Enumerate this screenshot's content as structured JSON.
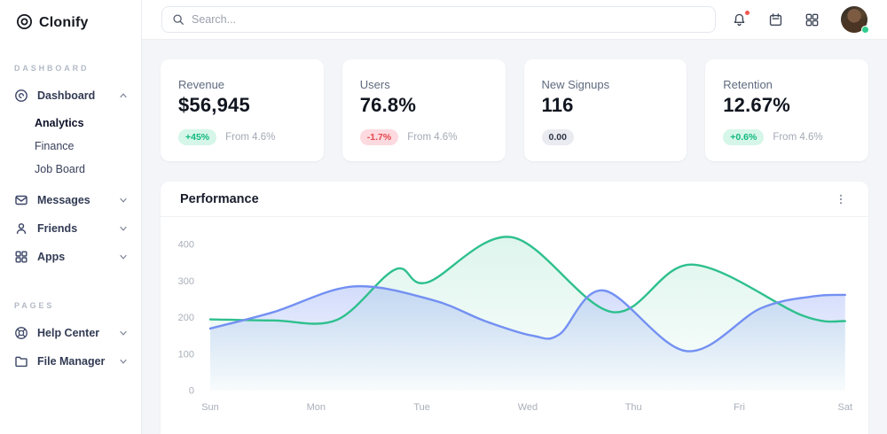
{
  "app": {
    "name": "Clonify"
  },
  "topbar": {
    "search_placeholder": "Search...",
    "icons": [
      "search-icon",
      "bell-icon",
      "calendar-icon",
      "apps-grid-icon",
      "avatar"
    ],
    "notification_dot_color": "#f0564f",
    "presence_dot_color": "#2ecc8d"
  },
  "sidebar": {
    "sections": [
      {
        "label": "DASHBOARD",
        "items": [
          {
            "label": "Dashboard",
            "icon": "dashboard-icon",
            "expanded": true,
            "children": [
              {
                "label": "Analytics",
                "active": true
              },
              {
                "label": "Finance",
                "active": false
              },
              {
                "label": "Job Board",
                "active": false
              }
            ]
          },
          {
            "label": "Messages",
            "icon": "mail-icon",
            "expanded": false
          },
          {
            "label": "Friends",
            "icon": "user-icon",
            "expanded": false
          },
          {
            "label": "Apps",
            "icon": "grid-icon",
            "expanded": false
          }
        ]
      },
      {
        "label": "PAGES",
        "items": [
          {
            "label": "Help Center",
            "icon": "lifebuoy-icon",
            "expanded": false
          },
          {
            "label": "File Manager",
            "icon": "folder-icon",
            "expanded": false
          }
        ]
      }
    ]
  },
  "stats": [
    {
      "label": "Revenue",
      "value": "$56,945",
      "badge": "+45%",
      "badge_type": "up",
      "note": "From 4.6%"
    },
    {
      "label": "Users",
      "value": "76.8%",
      "badge": "-1.7%",
      "badge_type": "down",
      "note": "From 4.6%"
    },
    {
      "label": "New Signups",
      "value": "116",
      "badge": "0.00",
      "badge_type": "neutral",
      "note": ""
    },
    {
      "label": "Retention",
      "value": "12.67%",
      "badge": "+0.6%",
      "badge_type": "up",
      "note": "From 4.6%"
    }
  ],
  "performance": {
    "title": "Performance"
  },
  "chart_data": {
    "type": "area",
    "title": "Performance",
    "x_categories": [
      "Sun",
      "Mon",
      "Tue",
      "Wed",
      "Thu",
      "Fri",
      "Sat"
    ],
    "y_ticks": [
      0,
      100,
      200,
      300,
      400
    ],
    "ylim": [
      0,
      440
    ],
    "grid": false,
    "legend": "none",
    "axis_text_color": "#a9afba",
    "series": [
      {
        "name": "green",
        "color": "#2ec08d",
        "fill_opacity_top": 0.16,
        "points": [
          [
            0,
            195
          ],
          [
            0.6,
            192
          ],
          [
            1.2,
            194
          ],
          [
            1.75,
            332
          ],
          [
            2.05,
            296
          ],
          [
            2.85,
            420
          ],
          [
            3.8,
            215
          ],
          [
            4.55,
            345
          ],
          [
            5.6,
            205
          ],
          [
            6,
            190
          ]
        ]
      },
      {
        "name": "blue",
        "color": "#7390f2",
        "fill_opacity_top": 0.32,
        "points": [
          [
            0,
            170
          ],
          [
            0.6,
            215
          ],
          [
            1.35,
            285
          ],
          [
            2.1,
            248
          ],
          [
            2.6,
            190
          ],
          [
            3.05,
            150
          ],
          [
            3.3,
            154
          ],
          [
            3.72,
            274
          ],
          [
            4.5,
            108
          ],
          [
            5.2,
            225
          ],
          [
            5.7,
            258
          ],
          [
            6,
            262
          ]
        ]
      }
    ]
  }
}
